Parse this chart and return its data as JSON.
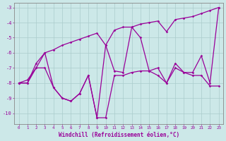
{
  "x": [
    0,
    1,
    2,
    3,
    4,
    5,
    6,
    7,
    8,
    9,
    10,
    11,
    12,
    13,
    14,
    15,
    16,
    17,
    18,
    19,
    20,
    21,
    22,
    23
  ],
  "y_main": [
    -8.0,
    -8.0,
    -6.7,
    -6.0,
    -8.3,
    -9.0,
    -9.2,
    -8.7,
    -7.5,
    -10.3,
    -5.5,
    -7.2,
    -7.3,
    -4.3,
    -5.0,
    -7.2,
    -7.0,
    -8.0,
    -6.7,
    -7.3,
    -7.3,
    -6.2,
    -8.0,
    -3.0
  ],
  "y_upper": [
    -8.0,
    -7.8,
    -7.0,
    -6.0,
    -5.8,
    -5.5,
    -5.3,
    -5.1,
    -4.9,
    -4.7,
    -5.5,
    -4.5,
    -4.3,
    -4.3,
    -4.1,
    -4.0,
    -3.9,
    -4.6,
    -3.8,
    -3.7,
    -3.6,
    -3.4,
    -3.2,
    -3.0
  ],
  "y_lower": [
    -8.0,
    -8.0,
    -7.0,
    -7.0,
    -8.3,
    -9.0,
    -9.2,
    -8.7,
    -7.5,
    -10.3,
    -10.3,
    -7.5,
    -7.5,
    -7.3,
    -7.2,
    -7.2,
    -7.5,
    -8.0,
    -7.0,
    -7.3,
    -7.5,
    -7.5,
    -8.2,
    -8.2
  ],
  "color": "#990099",
  "bg_color": "#cce8e8",
  "grid_color": "#aacccc",
  "xlabel": "Windchill (Refroidissement éolien,°C)",
  "ylim": [
    -10.7,
    -2.7
  ],
  "xlim": [
    -0.5,
    23.5
  ],
  "yticks": [
    -10,
    -9,
    -8,
    -7,
    -6,
    -5,
    -4,
    -3
  ],
  "xticks": [
    0,
    1,
    2,
    3,
    4,
    5,
    6,
    7,
    8,
    9,
    10,
    11,
    12,
    13,
    14,
    15,
    16,
    17,
    18,
    19,
    20,
    21,
    22,
    23
  ]
}
